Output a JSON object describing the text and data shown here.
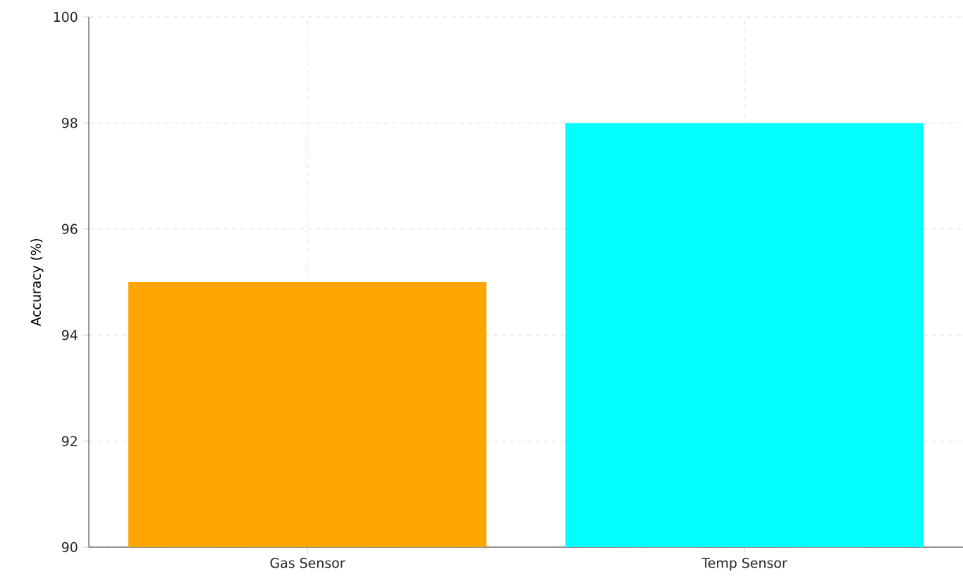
{
  "chart_data": {
    "type": "bar",
    "ylabel": "Accuracy (%)",
    "categories": [
      "Gas Sensor",
      "Temp Sensor"
    ],
    "values": [
      95,
      98
    ],
    "colors": [
      "#ffa500",
      "#00ffff"
    ],
    "ylim": [
      90,
      100
    ],
    "yticks": [
      90,
      92,
      94,
      96,
      98,
      100
    ],
    "grid": true
  }
}
